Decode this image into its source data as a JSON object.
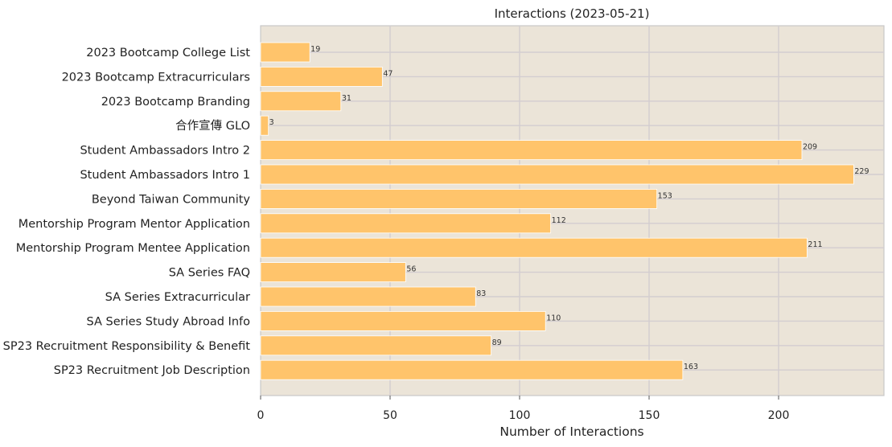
{
  "chart_data": {
    "type": "bar",
    "orientation": "horizontal",
    "title": "Interactions (2023-05-21)",
    "xlabel": "Number of Interactions",
    "ylabel": "",
    "xlim": [
      0,
      240
    ],
    "xticks": [
      0,
      50,
      100,
      150,
      200
    ],
    "grid": true,
    "categories": [
      "2023 Bootcamp College List",
      "2023 Bootcamp Extracurriculars",
      "2023 Bootcamp Branding",
      "合作宣傳 GLO",
      "Student Ambassadors Intro 2",
      "Student Ambassadors Intro 1",
      "Beyond Taiwan Community",
      "Mentorship Program Mentor Application",
      "Mentorship Program Mentee Application",
      "SA Series FAQ",
      "SA Series Extracurricular",
      "SA Series Study Abroad Info",
      "SP23 Recruitment Responsibility & Benefit",
      "SP23 Recruitment Job Description"
    ],
    "values": [
      19,
      47,
      31,
      3,
      209,
      229,
      153,
      112,
      211,
      56,
      83,
      110,
      89,
      163
    ],
    "colors": {
      "bar": "#ffc46b",
      "plot_background": "#ebe4d8",
      "grid": "#d3cdd0",
      "spine": "#c8c8c8"
    }
  }
}
